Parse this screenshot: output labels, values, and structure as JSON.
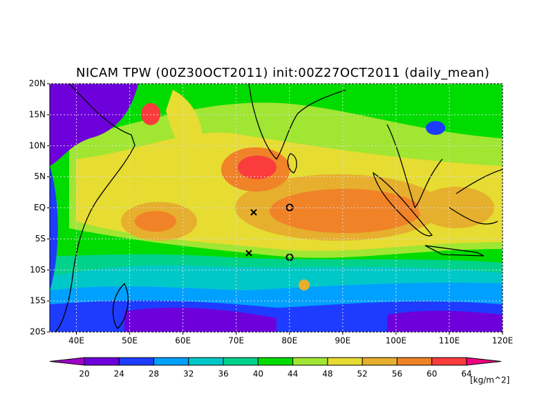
{
  "map": {
    "title": "NICAM TPW (00Z30OCT2011) init:00Z27OCT2011 (daily_mean)",
    "lonlim": [
      35,
      120
    ],
    "latlim": [
      -20,
      20
    ],
    "lon_ticks": [
      {
        "value": 40,
        "label": "40E"
      },
      {
        "value": 50,
        "label": "50E"
      },
      {
        "value": 60,
        "label": "60E"
      },
      {
        "value": 70,
        "label": "70E"
      },
      {
        "value": 80,
        "label": "80E"
      },
      {
        "value": 90,
        "label": "90E"
      },
      {
        "value": 100,
        "label": "100E"
      },
      {
        "value": 110,
        "label": "110E"
      },
      {
        "value": 120,
        "label": "120E"
      }
    ],
    "lat_ticks": [
      {
        "value": -20,
        "label": "20S"
      },
      {
        "value": -15,
        "label": "15S"
      },
      {
        "value": -10,
        "label": "10S"
      },
      {
        "value": -5,
        "label": "5S"
      },
      {
        "value": 0,
        "label": "EQ"
      },
      {
        "value": 5,
        "label": "5N"
      },
      {
        "value": 10,
        "label": "10N"
      },
      {
        "value": 15,
        "label": "15N"
      },
      {
        "value": 20,
        "label": "20N"
      }
    ]
  },
  "colorbar": {
    "levels": [
      20,
      24,
      28,
      32,
      36,
      40,
      44,
      48,
      52,
      56,
      60,
      64
    ],
    "colors": [
      "#a000c8",
      "#6e00dc",
      "#1e3cff",
      "#00a0ff",
      "#00c8c8",
      "#00d28c",
      "#00dc00",
      "#a0e632",
      "#e6dc32",
      "#e6af2d",
      "#f08228",
      "#fa3c3c",
      "#f00082"
    ],
    "unit": "[kg/m^2]"
  }
}
